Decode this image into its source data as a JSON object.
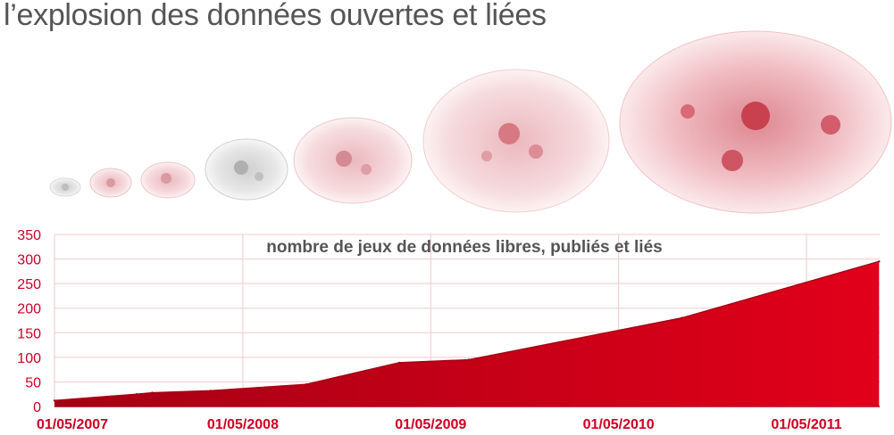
{
  "slide": {
    "title": "l’explosion des données ouvertes et liées",
    "network_snapshots": [
      "graph-2007",
      "graph-2007b",
      "graph-2008",
      "graph-2008b",
      "graph-2009",
      "graph-2010",
      "graph-2011"
    ]
  },
  "colors": {
    "accent": "#e2001a",
    "accent_dark": "#a50014",
    "tick": "#cc0022",
    "grid": "#f3c9cc",
    "title": "#555555"
  },
  "chart_data": {
    "type": "area",
    "title": "nombre de jeux de données libres, publiés et liés",
    "xlabel": "",
    "ylabel": "",
    "ylim": [
      0,
      350
    ],
    "yticks": [
      0,
      50,
      100,
      150,
      200,
      250,
      300,
      350
    ],
    "xticks": [
      "01/05/2007",
      "01/05/2008",
      "01/05/2009",
      "01/05/2010",
      "01/05/2011"
    ],
    "grid": true,
    "legend": "none",
    "x": [
      "2007-05-01",
      "2007-10-08",
      "2007-11-07",
      "2008-02-28",
      "2008-09-01",
      "2009-03-01",
      "2009-07-14",
      "2010-09-01",
      "2011-09-19"
    ],
    "values": [
      12,
      25,
      28,
      32,
      45,
      89,
      95,
      180,
      295
    ]
  }
}
